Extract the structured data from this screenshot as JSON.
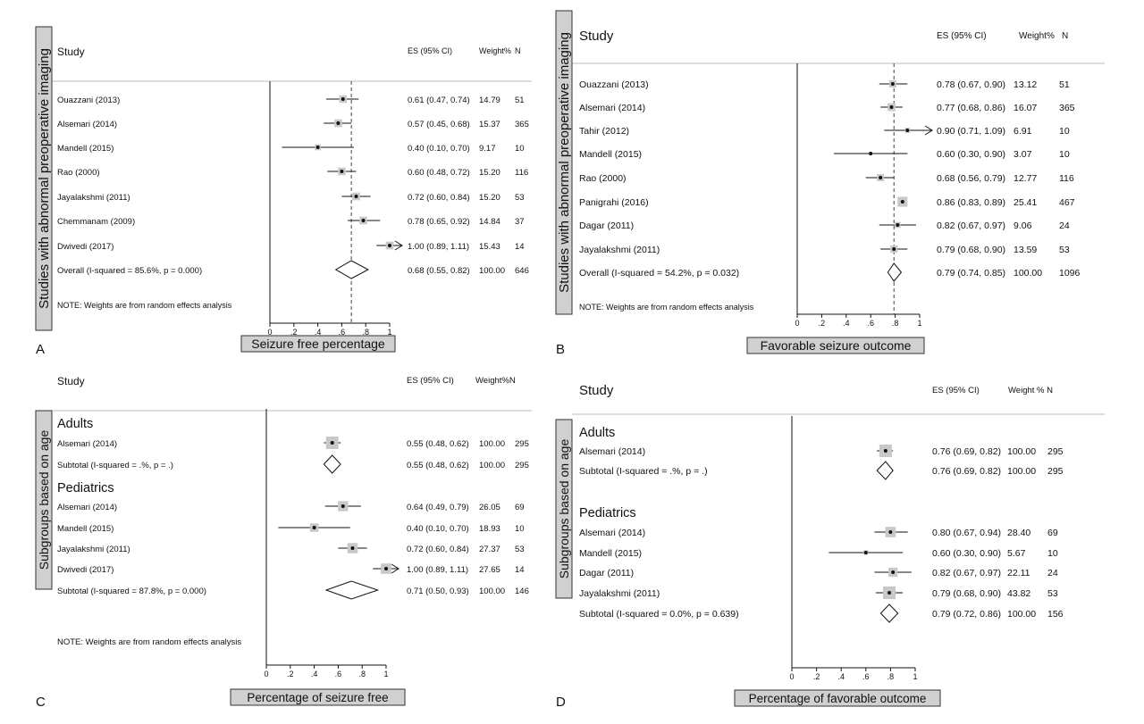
{
  "chart_data": [
    {
      "type": "forest",
      "panel_letter": "A",
      "side_label": "Studies with abnormal preoperative imaging",
      "headers": {
        "study": "Study",
        "es": "ES (95% CI)",
        "weight": "Weight%",
        "n": "N"
      },
      "xlabel": "Seizure free percentage",
      "xlim": [
        0,
        1
      ],
      "ticks": [
        "0",
        ".2",
        ".4",
        ".6",
        ".8",
        "1"
      ],
      "null_line": null,
      "overall_line": 0.68,
      "note": "NOTE: Weights are from random effects analysis",
      "rows": [
        {
          "kind": "study",
          "label": "Ouazzani (2013)",
          "es": 0.61,
          "lo": 0.47,
          "hi": 0.74,
          "es_text": "0.61 (0.47, 0.74)",
          "weight": "14.79",
          "n": "51"
        },
        {
          "kind": "study",
          "label": "Alsemari (2014)",
          "es": 0.57,
          "lo": 0.45,
          "hi": 0.68,
          "es_text": "0.57 (0.45, 0.68)",
          "weight": "15.37",
          "n": "365"
        },
        {
          "kind": "study",
          "label": "Mandell (2015)",
          "es": 0.4,
          "lo": 0.1,
          "hi": 0.7,
          "es_text": "0.40 (0.10, 0.70)",
          "weight": "9.17",
          "n": "10"
        },
        {
          "kind": "study",
          "label": "Rao (2000)",
          "es": 0.6,
          "lo": 0.48,
          "hi": 0.72,
          "es_text": "0.60 (0.48, 0.72)",
          "weight": "15.20",
          "n": "116"
        },
        {
          "kind": "study",
          "label": "Jayalakshmi (2011)",
          "es": 0.72,
          "lo": 0.6,
          "hi": 0.84,
          "es_text": "0.72 (0.60, 0.84)",
          "weight": "15.20",
          "n": "53"
        },
        {
          "kind": "study",
          "label": "Chemmanam (2009)",
          "es": 0.78,
          "lo": 0.65,
          "hi": 0.92,
          "es_text": "0.78 (0.65, 0.92)",
          "weight": "14.84",
          "n": "37"
        },
        {
          "kind": "study",
          "label": "Dwivedi (2017)",
          "es": 1.0,
          "lo": 0.89,
          "hi": 1.11,
          "es_text": "1.00 (0.89, 1.11)",
          "weight": "15.43",
          "n": "14"
        },
        {
          "kind": "overall",
          "label": "Overall  (I-squared = 85.6%, p = 0.000)",
          "es": 0.68,
          "lo": 0.55,
          "hi": 0.82,
          "es_text": "0.68 (0.55, 0.82)",
          "weight": "100.00",
          "n": "646"
        }
      ]
    },
    {
      "type": "forest",
      "panel_letter": "B",
      "side_label": "Studies with abnormal preoperative imaging",
      "headers": {
        "study": "Study",
        "es": "ES (95% CI)",
        "weight": "Weight%",
        "n": "N"
      },
      "xlabel": "Favorable seizure outcome",
      "xlim": [
        0,
        1
      ],
      "ticks": [
        "0",
        ".2",
        ".4",
        ".6",
        ".8",
        "1"
      ],
      "overall_line": 0.79,
      "note": "NOTE: Weights are from random effects analysis",
      "rows": [
        {
          "kind": "study",
          "label": "Ouazzani (2013)",
          "es": 0.78,
          "lo": 0.67,
          "hi": 0.9,
          "es_text": "0.78 (0.67, 0.90)",
          "weight": "13.12",
          "n": "51"
        },
        {
          "kind": "study",
          "label": "Alsemari (2014)",
          "es": 0.77,
          "lo": 0.68,
          "hi": 0.86,
          "es_text": "0.77 (0.68, 0.86)",
          "weight": "16.07",
          "n": "365"
        },
        {
          "kind": "study",
          "label": "Tahir (2012)",
          "es": 0.9,
          "lo": 0.71,
          "hi": 1.09,
          "es_text": "0.90 (0.71, 1.09)",
          "weight": "6.91",
          "n": "10"
        },
        {
          "kind": "study",
          "label": "Mandell (2015)",
          "es": 0.6,
          "lo": 0.3,
          "hi": 0.9,
          "es_text": "0.60 (0.30, 0.90)",
          "weight": "3.07",
          "n": "10"
        },
        {
          "kind": "study",
          "label": "Rao (2000)",
          "es": 0.68,
          "lo": 0.56,
          "hi": 0.79,
          "es_text": "0.68 (0.56, 0.79)",
          "weight": "12.77",
          "n": "116"
        },
        {
          "kind": "study",
          "label": "Panigrahi (2016)",
          "es": 0.86,
          "lo": 0.83,
          "hi": 0.89,
          "es_text": "0.86 (0.83, 0.89)",
          "weight": "25.41",
          "n": "467"
        },
        {
          "kind": "study",
          "label": "Dagar (2011)",
          "es": 0.82,
          "lo": 0.67,
          "hi": 0.97,
          "es_text": "0.82 (0.67, 0.97)",
          "weight": "9.06",
          "n": "24"
        },
        {
          "kind": "study",
          "label": "Jayalakshmi (2011)",
          "es": 0.79,
          "lo": 0.68,
          "hi": 0.9,
          "es_text": "0.79 (0.68, 0.90)",
          "weight": "13.59",
          "n": "53"
        },
        {
          "kind": "overall",
          "label": "Overall  (I-squared = 54.2%, p = 0.032)",
          "es": 0.79,
          "lo": 0.74,
          "hi": 0.85,
          "es_text": "0.79 (0.74, 0.85)",
          "weight": "100.00",
          "n": "1096"
        }
      ]
    },
    {
      "type": "forest",
      "panel_letter": "C",
      "side_label": "Subgroups based on age",
      "headers": {
        "study": "Study",
        "es": "ES (95% CI)",
        "weight": "Weight%N",
        "n": ""
      },
      "xlabel": "Percentage of seizure free",
      "xlim": [
        0,
        1
      ],
      "ticks": [
        "0",
        ".2",
        ".4",
        ".6",
        ".8",
        "1"
      ],
      "overall_line": null,
      "note": "NOTE: Weights are from random effects analysis",
      "rows": [
        {
          "kind": "group",
          "label": "Adults"
        },
        {
          "kind": "study",
          "label": "Alsemari (2014)",
          "es": 0.55,
          "lo": 0.48,
          "hi": 0.62,
          "es_text": "0.55 (0.48, 0.62)",
          "weight": "100.00",
          "n": "295"
        },
        {
          "kind": "subtotal",
          "label": "Subtotal  (I-squared = .%, p = .)",
          "es": 0.55,
          "lo": 0.48,
          "hi": 0.62,
          "es_text": "0.55 (0.48, 0.62)",
          "weight": "100.00",
          "n": "295"
        },
        {
          "kind": "group",
          "label": "Pediatrics"
        },
        {
          "kind": "study",
          "label": "Alsemari (2014)",
          "es": 0.64,
          "lo": 0.49,
          "hi": 0.79,
          "es_text": "0.64 (0.49, 0.79)",
          "weight": "26.05",
          "n": "69"
        },
        {
          "kind": "study",
          "label": "Mandell (2015)",
          "es": 0.4,
          "lo": 0.1,
          "hi": 0.7,
          "es_text": "0.40 (0.10, 0.70)",
          "weight": "18.93",
          "n": "10"
        },
        {
          "kind": "study",
          "label": "Jayalakshmi (2011)",
          "es": 0.72,
          "lo": 0.6,
          "hi": 0.84,
          "es_text": "0.72 (0.60, 0.84)",
          "weight": "27.37",
          "n": "53"
        },
        {
          "kind": "study",
          "label": "Dwivedi (2017)",
          "es": 1.0,
          "lo": 0.89,
          "hi": 1.11,
          "es_text": "1.00 (0.89, 1.11)",
          "weight": "27.65",
          "n": "14"
        },
        {
          "kind": "subtotal",
          "label": "Subtotal  (I-squared = 87.8%, p = 0.000)",
          "es": 0.71,
          "lo": 0.5,
          "hi": 0.93,
          "es_text": "0.71 (0.50, 0.93)",
          "weight": "100.00",
          "n": "146"
        }
      ]
    },
    {
      "type": "forest",
      "panel_letter": "D",
      "side_label": "Subgroups based on age",
      "headers": {
        "study": "Study",
        "es": "ES (95% CI)",
        "weight": "Weight % N",
        "n": ""
      },
      "xlabel": "Percentage of favorable outcome",
      "xlim": [
        0,
        1
      ],
      "ticks": [
        "0",
        ".2",
        ".4",
        ".6",
        ".8",
        "1"
      ],
      "overall_line": null,
      "note": "",
      "rows": [
        {
          "kind": "group",
          "label": "Adults"
        },
        {
          "kind": "study",
          "label": "Alsemari (2014)",
          "es": 0.76,
          "lo": 0.69,
          "hi": 0.82,
          "es_text": "0.76 (0.69, 0.82)",
          "weight": "100.00",
          "n": "295"
        },
        {
          "kind": "subtotal",
          "label": "Subtotal  (I-squared = .%, p = .)",
          "es": 0.76,
          "lo": 0.69,
          "hi": 0.82,
          "es_text": "0.76 (0.69, 0.82)",
          "weight": "100.00",
          "n": "295"
        },
        {
          "kind": "group",
          "label": "Pediatrics"
        },
        {
          "kind": "study",
          "label": "Alsemari (2014)",
          "es": 0.8,
          "lo": 0.67,
          "hi": 0.94,
          "es_text": "0.80 (0.67, 0.94)",
          "weight": "28.40",
          "n": "69"
        },
        {
          "kind": "study",
          "label": "Mandell (2015)",
          "es": 0.6,
          "lo": 0.3,
          "hi": 0.9,
          "es_text": "0.60 (0.30, 0.90)",
          "weight": "5.67",
          "n": "10"
        },
        {
          "kind": "study",
          "label": "Dagar (2011)",
          "es": 0.82,
          "lo": 0.67,
          "hi": 0.97,
          "es_text": "0.82 (0.67, 0.97)",
          "weight": "22.11",
          "n": "24"
        },
        {
          "kind": "study",
          "label": "Jayalakshmi (2011)",
          "es": 0.79,
          "lo": 0.68,
          "hi": 0.9,
          "es_text": "0.79 (0.68, 0.90)",
          "weight": "43.82",
          "n": "53"
        },
        {
          "kind": "subtotal",
          "label": "Subtotal  (I-squared = 0.0%, p = 0.639)",
          "es": 0.79,
          "lo": 0.72,
          "hi": 0.86,
          "es_text": "0.79 (0.72, 0.86)",
          "weight": "100.00",
          "n": "156"
        }
      ]
    }
  ]
}
